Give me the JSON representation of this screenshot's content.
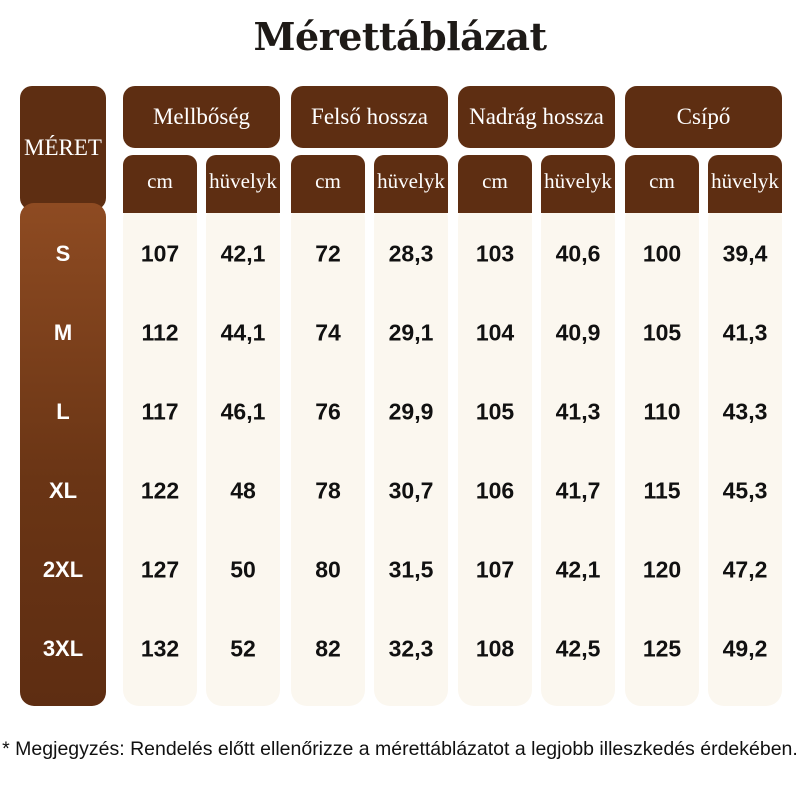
{
  "title": "Mérettáblázat",
  "size_header": "MÉRET",
  "unit_labels": {
    "cm": "cm",
    "inch": "hüvelyk"
  },
  "groups": [
    {
      "label": "Mellbőség",
      "cm": [
        "107",
        "112",
        "117",
        "122",
        "127",
        "132"
      ],
      "inch": [
        "42,1",
        "44,1",
        "46,1",
        "48",
        "50",
        "52"
      ]
    },
    {
      "label": "Felső hossza",
      "cm": [
        "72",
        "74",
        "76",
        "78",
        "80",
        "82"
      ],
      "inch": [
        "28,3",
        "29,1",
        "29,9",
        "30,7",
        "31,5",
        "32,3"
      ]
    },
    {
      "label": "Nadrág hossza",
      "cm": [
        "103",
        "104",
        "105",
        "106",
        "107",
        "108"
      ],
      "inch": [
        "40,6",
        "40,9",
        "41,3",
        "41,7",
        "42,1",
        "42,5"
      ]
    },
    {
      "label": "Csípő",
      "cm": [
        "100",
        "105",
        "110",
        "115",
        "120",
        "125"
      ],
      "inch": [
        "39,4",
        "41,3",
        "43,3",
        "45,3",
        "47,2",
        "49,2"
      ]
    }
  ],
  "sizes": [
    "S",
    "M",
    "L",
    "XL",
    "2XL",
    "3XL"
  ],
  "note": "* Megjegyzés: Rendelés előtt ellenőrizze a mérettáblázatot a legjobb illeszkedés érdekében.",
  "colors": {
    "dark_brown": "#5e2e12",
    "light_brown": "#8e4b22",
    "cream": "#fbf7ef"
  }
}
